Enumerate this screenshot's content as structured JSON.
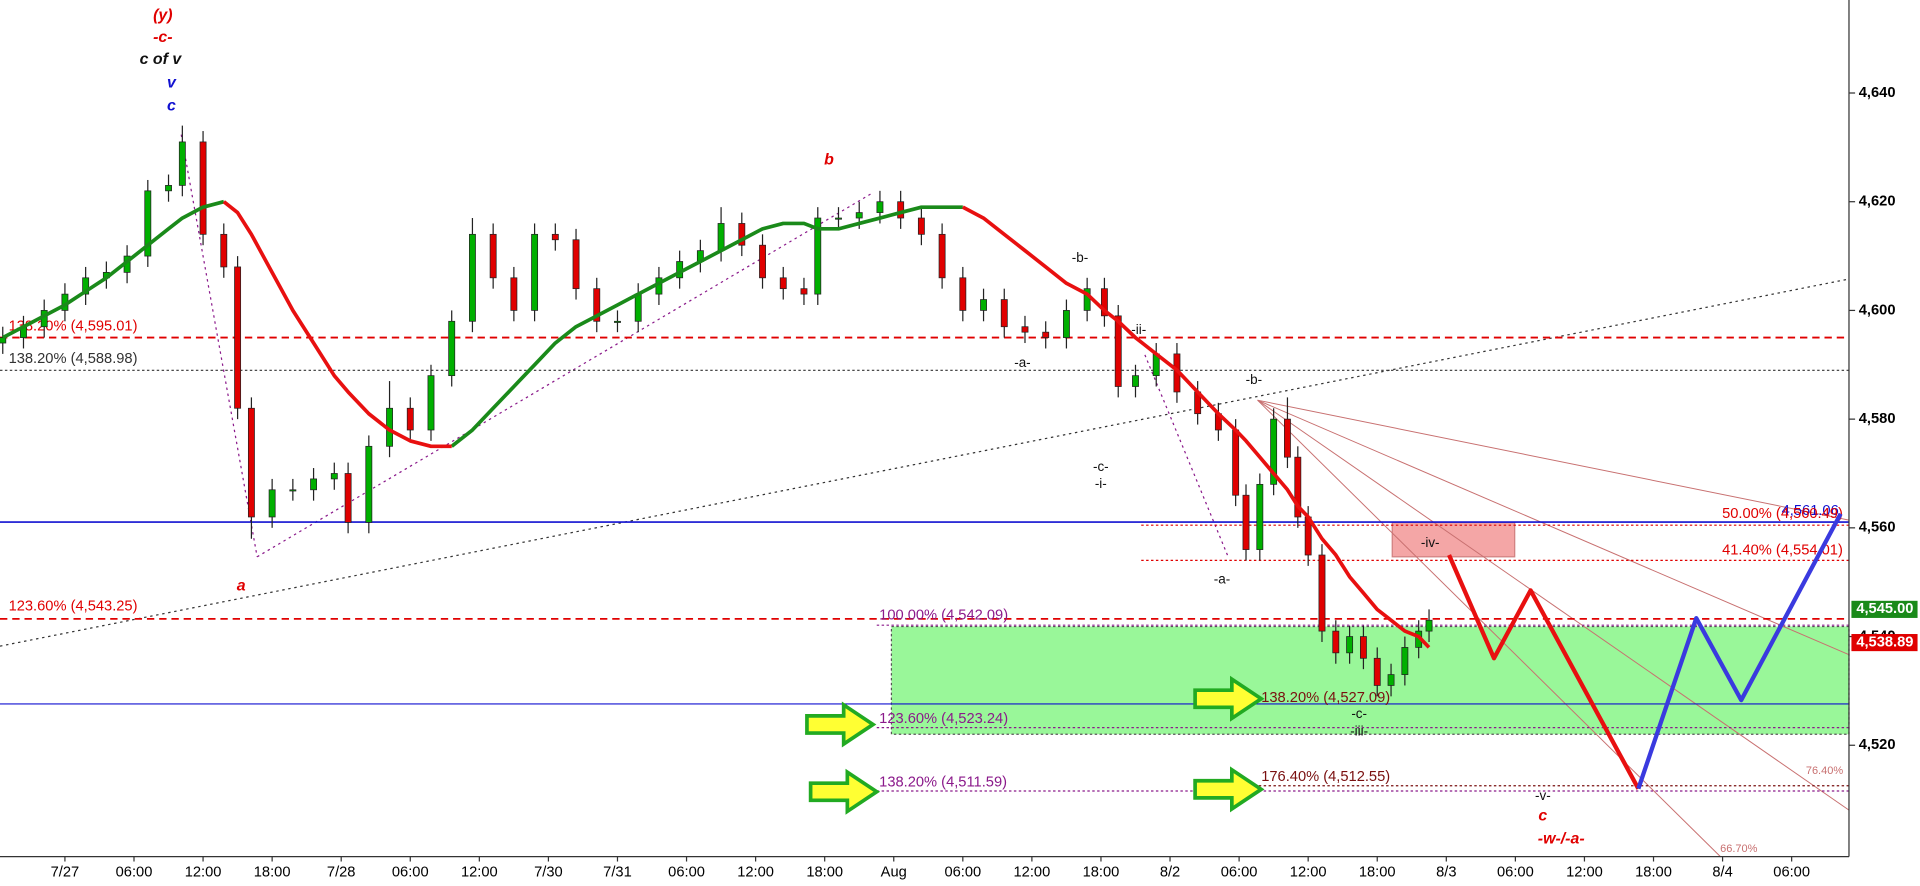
{
  "chart_data": {
    "type": "candlestick",
    "x": [
      -0.9,
      -0.6,
      -0.3,
      0,
      0.3,
      0.6,
      0.9,
      1.2,
      1.5,
      1.7,
      2.0,
      2.3,
      2.5,
      2.7,
      3.0,
      3.3,
      3.6,
      3.9,
      4.1,
      4.4,
      4.7,
      5.0,
      5.3,
      5.6,
      5.9,
      6.2,
      6.5,
      6.8,
      7.1,
      7.4,
      7.7,
      8.0,
      8.3,
      8.6,
      8.9,
      9.2,
      9.5,
      9.8,
      10.1,
      10.4,
      10.7,
      10.9,
      11.2,
      11.5,
      11.8,
      12.1,
      12.4,
      12.7,
      13.0,
      13.3,
      13.6,
      13.9,
      14.2,
      14.5,
      14.8,
      15.05,
      15.25,
      15.5,
      15.8,
      16.1,
      16.4,
      16.7,
      16.95,
      17.1,
      17.3,
      17.5,
      17.7,
      17.85,
      18.0,
      18.2,
      18.4,
      18.6,
      18.8,
      19.0,
      19.2,
      19.4,
      19.6,
      19.75
    ],
    "open": [
      4594,
      4595,
      4597,
      4600,
      4603,
      4606,
      4607,
      4610,
      4622,
      4623,
      4631,
      4614,
      4608,
      4582,
      4562,
      4567,
      4567,
      4569,
      4570,
      4561,
      4575,
      4582,
      4578,
      4588,
      4598,
      4614,
      4606,
      4600,
      4614,
      4613,
      4604,
      4598,
      4598,
      4603,
      4606,
      4609,
      4611,
      4616,
      4612,
      4606,
      4604,
      4603,
      4617,
      4617,
      4618,
      4620,
      4617,
      4614,
      4606,
      4600,
      4602,
      4597,
      4596,
      4595,
      4600,
      4604,
      4599,
      4586,
      4588,
      4592,
      4585,
      4581,
      4578,
      4566,
      4556,
      4568,
      4580,
      4573,
      4562,
      4555,
      4541,
      4537,
      4540,
      4536,
      4531,
      4533,
      4538,
      4541
    ],
    "high": [
      4597,
      4599,
      4602,
      4605,
      4608,
      4609,
      4612,
      4624,
      4625,
      4634,
      4633,
      4616,
      4610,
      4584,
      4569,
      4569,
      4571,
      4572,
      4572,
      4577,
      4587,
      4584,
      4590,
      4600,
      4617,
      4616,
      4608,
      4616,
      4616,
      4615,
      4606,
      4600,
      4605,
      4608,
      4611,
      4613,
      4619,
      4618,
      4614,
      4608,
      4606,
      4619,
      4619,
      4620,
      4622,
      4622,
      4619,
      4616,
      4608,
      4604,
      4604,
      4599,
      4598,
      4602,
      4606,
      4606,
      4601,
      4590,
      4594,
      4594,
      4587,
      4583,
      4580,
      4568,
      4570,
      4582,
      4584,
      4575,
      4564,
      4557,
      4543,
      4542,
      4542,
      4538,
      4535,
      4540,
      4543,
      4545
    ],
    "low": [
      4592,
      4593,
      4595,
      4598,
      4601,
      4604,
      4605,
      4608,
      4620,
      4621,
      4612,
      4606,
      4580,
      4558,
      4560,
      4565,
      4565,
      4567,
      4559,
      4559,
      4573,
      4576,
      4576,
      4586,
      4596,
      4604,
      4598,
      4598,
      4611,
      4602,
      4596,
      4596,
      4596,
      4601,
      4604,
      4607,
      4609,
      4610,
      4604,
      4602,
      4601,
      4601,
      4615,
      4615,
      4616,
      4615,
      4612,
      4604,
      4598,
      4598,
      4595,
      4594,
      4593,
      4593,
      4598,
      4597,
      4584,
      4584,
      4586,
      4583,
      4579,
      4576,
      4564,
      4554,
      4554,
      4566,
      4571,
      4560,
      4553,
      4539,
      4535,
      4535,
      4534,
      4529,
      4529,
      4531,
      4536,
      4539
    ],
    "close": [
      4595,
      4597,
      4600,
      4603,
      4606,
      4607,
      4610,
      4622,
      4623,
      4631,
      4614,
      4608,
      4582,
      4562,
      4567,
      4567,
      4569,
      4570,
      4561,
      4575,
      4582,
      4578,
      4588,
      4598,
      4614,
      4606,
      4600,
      4614,
      4613,
      4604,
      4598,
      4598,
      4603,
      4606,
      4609,
      4611,
      4616,
      4612,
      4606,
      4604,
      4603,
      4617,
      4617,
      4618,
      4620,
      4617,
      4614,
      4606,
      4600,
      4602,
      4597,
      4596,
      4595,
      4600,
      4604,
      4599,
      4586,
      4588,
      4592,
      4585,
      4581,
      4578,
      4566,
      4556,
      4568,
      4580,
      4573,
      4562,
      4555,
      4541,
      4537,
      4540,
      4536,
      4531,
      4533,
      4538,
      4541,
      4543
    ],
    "up_color": "#00b000",
    "down_color": "#e00000",
    "series": [
      {
        "color": "#1a8a1a",
        "values": [
          4595,
          4597,
          4599,
          4601,
          4603.5,
          4606,
          4609,
          4612,
          4615,
          4617,
          4619,
          4620,
          null,
          null,
          null,
          null,
          null,
          null,
          null,
          null,
          null,
          null,
          null,
          4575,
          4578,
          4582,
          4586,
          4590,
          4594,
          4597,
          4599,
          4601,
          4603,
          4605,
          4607,
          4609,
          4611,
          4613,
          4615,
          4616,
          4616,
          4615,
          4615,
          4616,
          4617,
          4618,
          4619,
          4619,
          4619,
          null,
          null,
          null,
          null,
          null,
          null,
          null,
          null,
          null,
          null,
          null,
          null,
          null,
          null,
          null,
          null,
          null,
          null,
          null,
          null,
          null,
          null,
          null,
          null,
          null,
          null,
          null,
          null,
          null
        ]
      },
      {
        "color": "#e81010",
        "values": [
          null,
          null,
          null,
          null,
          null,
          null,
          null,
          null,
          null,
          null,
          null,
          4620,
          4618,
          4614,
          4607,
          4600,
          4594,
          4588,
          4585,
          4581,
          4578,
          4576,
          4575,
          4575,
          null,
          null,
          null,
          null,
          null,
          null,
          null,
          null,
          null,
          null,
          null,
          null,
          null,
          null,
          null,
          null,
          null,
          null,
          null,
          null,
          null,
          null,
          null,
          null,
          4619,
          4617,
          4614,
          4611,
          4608,
          4605,
          4603,
          4600,
          4598,
          4595,
          4592,
          4589,
          4585,
          4581,
          4578,
          4576,
          4573,
          4570,
          4567,
          4564,
          4562,
          4558,
          4555,
          4551,
          4548,
          4545,
          4543,
          4541,
          4540,
          4538
        ]
      }
    ],
    "projections": [
      {
        "color": "#e81010",
        "x": [
          20.04,
          20.69,
          21.22,
          22.78
        ],
        "values": [
          4555,
          4536,
          4548.5,
          4512
        ]
      },
      {
        "color": "#3a3adf",
        "x": [
          22.78,
          23.62,
          24.27,
          25.71
        ],
        "values": [
          4512,
          4543.4,
          4528.3,
          4562.6
        ]
      }
    ],
    "levels": [
      {
        "label": "138.20% (4,595.01)",
        "value": 4595.01,
        "color": "#e00000",
        "style": "dashed"
      },
      {
        "label": "138.20% (4,588.98)",
        "value": 4588.98,
        "color": "#333333",
        "style": "dotted"
      },
      {
        "label": "4,561.06",
        "value": 4561.06,
        "color": "#1010d0",
        "style": "solid"
      },
      {
        "label": "123.60% (4,543.25)",
        "value": 4543.25,
        "color": "#e00000",
        "style": "dashed"
      },
      {
        "value": 4527.6,
        "color": "#1010d0",
        "style": "thin"
      },
      {
        "label": "100.00% (4,542.09)",
        "value": 4542.09,
        "color": "#8b1a8b",
        "style": "dotted"
      },
      {
        "label": "123.60% (4,523.24)",
        "value": 4523.24,
        "color": "#8b1a8b",
        "style": "dotted"
      },
      {
        "label": "138.20% (4,511.59)",
        "value": 4511.59,
        "color": "#8b1a8b",
        "style": "dotted"
      },
      {
        "label": "138.20% (4,527.09)",
        "value": 4527.09,
        "color": "#7a1010",
        "style": "none"
      },
      {
        "label": "176.40% (4,512.55)",
        "value": 4512.55,
        "color": "#7a1010",
        "style": "dotted"
      },
      {
        "label": "50.00% (4,560.49)",
        "value": 4560.49,
        "color": "#e00000",
        "style": "dotted"
      },
      {
        "label": "41.40% (4,554.01)",
        "value": 4554.01,
        "color": "#e00000",
        "style": "dotted"
      }
    ],
    "price_tags": [
      {
        "label": "4,545.00",
        "value": 4545.0,
        "color": "#1a8a1a"
      },
      {
        "label": "4,538.89",
        "value": 4538.89,
        "color": "#e00000"
      }
    ],
    "annotations": [
      "(y)",
      "-c-",
      "c of v",
      "v",
      "c",
      "b",
      "a",
      "-b-",
      "-a-",
      "-ii-",
      "-c-",
      "-i-",
      "-b-",
      "-a-",
      "-iv-",
      "-c-",
      "-iii-",
      "-v-",
      "c",
      "-w-/-a-",
      "76.40%",
      "66.70%"
    ],
    "xlim": [
      -0.94,
      25.83
    ],
    "ylim": [
      4499.51,
      4657.11
    ],
    "xticks": [
      {
        "value": 0,
        "label": "7/27"
      },
      {
        "value": 1,
        "label": "06:00"
      },
      {
        "value": 2,
        "label": "12:00"
      },
      {
        "value": 3,
        "label": "18:00"
      },
      {
        "value": 4,
        "label": "7/28"
      },
      {
        "value": 5,
        "label": "06:00"
      },
      {
        "value": 6,
        "label": "12:00"
      },
      {
        "value": 7,
        "label": "7/30"
      },
      {
        "value": 8,
        "label": "7/31"
      },
      {
        "value": 9,
        "label": "06:00"
      },
      {
        "value": 10,
        "label": "12:00"
      },
      {
        "value": 11,
        "label": "18:00"
      },
      {
        "value": 12,
        "label": "Aug"
      },
      {
        "value": 13,
        "label": "06:00"
      },
      {
        "value": 14,
        "label": "12:00"
      },
      {
        "value": 15,
        "label": "18:00"
      },
      {
        "value": 16,
        "label": "8/2"
      },
      {
        "value": 17,
        "label": "06:00"
      },
      {
        "value": 18,
        "label": "12:00"
      },
      {
        "value": 19,
        "label": "18:00"
      },
      {
        "value": 20,
        "label": "8/3"
      },
      {
        "value": 21,
        "label": "06:00"
      },
      {
        "value": 22,
        "label": "12:00"
      },
      {
        "value": 23,
        "label": "18:00"
      },
      {
        "value": 24,
        "label": "8/4"
      },
      {
        "value": 25,
        "label": "06:00"
      }
    ],
    "yticks": [
      {
        "value": 4520,
        "label": "4,520"
      },
      {
        "value": 4540,
        "label": "4,540"
      },
      {
        "value": 4560,
        "label": "4,560"
      },
      {
        "value": 4580,
        "label": "4,580"
      },
      {
        "value": 4600,
        "label": "4,600"
      },
      {
        "value": 4620,
        "label": "4,620"
      },
      {
        "value": 4640,
        "label": "4,640"
      }
    ]
  }
}
